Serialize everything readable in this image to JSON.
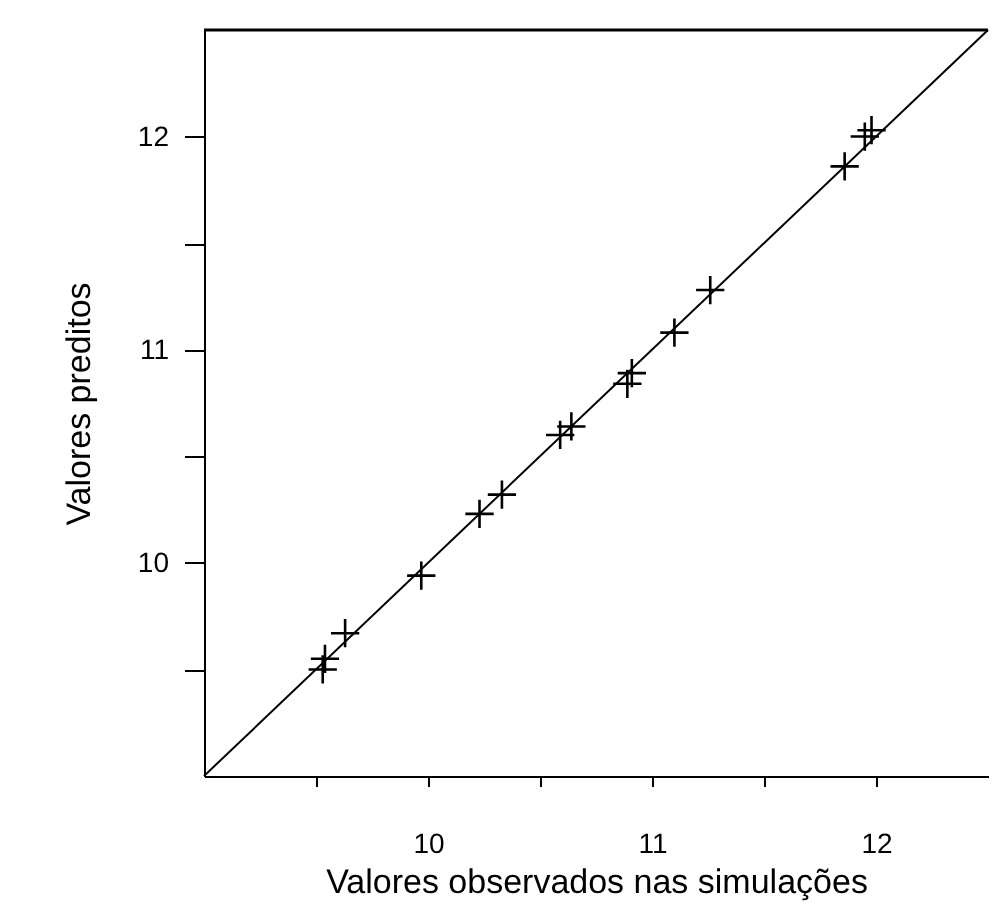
{
  "chart_data": {
    "type": "scatter",
    "xlabel": "Valores observados nas simulações",
    "ylabel": "Valores preditos",
    "xlim": [
      9,
      12.5
    ],
    "ylim": [
      9,
      12.5
    ],
    "xticks": [
      {
        "value": 9.5,
        "label": null
      },
      10,
      {
        "value": 10.5,
        "label": null
      },
      11,
      {
        "value": 11.5,
        "label": null
      },
      12
    ],
    "yticks": [
      {
        "value": 9.5,
        "label": null
      },
      10,
      {
        "value": 10.5,
        "label": null
      },
      11,
      {
        "value": 11.5,
        "label": null
      },
      12
    ],
    "series": [
      {
        "color": "#000000",
        "marker": "cross",
        "x": [
          9.53,
          9.54,
          9.63,
          9.97,
          10.23,
          10.33,
          10.59,
          10.64,
          10.89,
          10.91,
          11.1,
          11.26,
          11.86,
          11.95,
          11.98
        ],
        "values": [
          9.5,
          9.55,
          9.67,
          9.94,
          10.23,
          10.32,
          10.6,
          10.64,
          10.84,
          10.89,
          11.08,
          11.28,
          11.86,
          12.0,
          12.03
        ]
      },
      {
        "type": "line",
        "color": "#000000",
        "line_style": "solid",
        "x": [
          9,
          12.5
        ],
        "values": [
          9,
          12.5
        ]
      }
    ]
  }
}
